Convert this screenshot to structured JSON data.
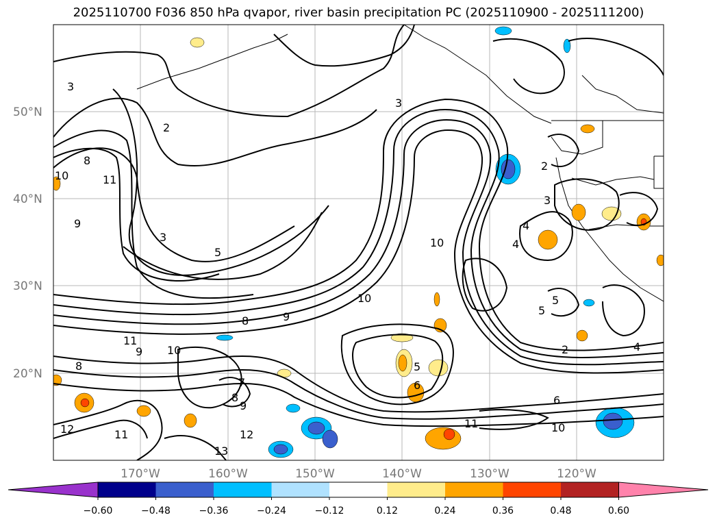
{
  "title": "2025110700 F036 850 hPa qvapor, river basin precipitation PC (2025110900 - 2025111200)",
  "lat_labels": [
    "50°N",
    "40°N",
    "30°N",
    "20°N"
  ],
  "lon_labels": [
    "170°W",
    "160°W",
    "150°W",
    "140°W",
    "130°W",
    "120°W"
  ],
  "colorbar": {
    "colors": [
      "#9932cc",
      "#00008b",
      "#3a5fcd",
      "#00bfff",
      "#b0e2ff",
      "#ffffff",
      "#ffec8b",
      "#ffa500",
      "#ff4500",
      "#b22222",
      "#ff82ab"
    ],
    "ticks": [
      "−0.60",
      "−0.48",
      "−0.36",
      "−0.24",
      "−0.12",
      "0.12",
      "0.24",
      "0.36",
      "0.48",
      "0.60"
    ]
  },
  "contour_labels": [
    "3",
    "2",
    "8",
    "10",
    "11",
    "9",
    "3",
    "5",
    "3",
    "10",
    "4",
    "4",
    "5",
    "10",
    "8",
    "9",
    "11",
    "9",
    "10",
    "8",
    "8",
    "9",
    "12",
    "11",
    "12",
    "13",
    "7",
    "5",
    "6",
    "6",
    "11",
    "10",
    "2",
    "4",
    "2",
    "3",
    "5"
  ]
}
